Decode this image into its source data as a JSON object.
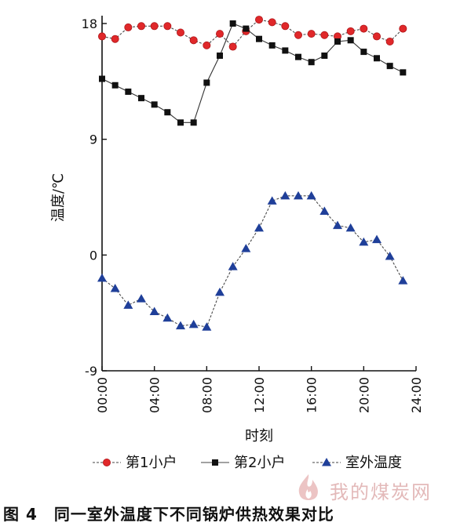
{
  "chart_data": {
    "type": "line",
    "xlabel": "时刻",
    "ylabel": "温度/℃",
    "x_ticks": [
      "00:00",
      "04:00",
      "08:00",
      "12:00",
      "16:00",
      "20:00",
      "24:00"
    ],
    "y_ticks": [
      "-9",
      "0",
      "9",
      "18"
    ],
    "xlim": [
      0,
      24
    ],
    "ylim": [
      -9,
      18
    ],
    "grid": false,
    "legend_position": "bottom",
    "x": [
      0,
      1,
      2,
      3,
      4,
      5,
      6,
      7,
      8,
      9,
      10,
      11,
      12,
      13,
      14,
      15,
      16,
      17,
      18,
      19,
      20,
      21,
      22,
      23
    ],
    "series": [
      {
        "name": "第1小户",
        "color": "#e0282a",
        "marker": "circle",
        "values": [
          17.0,
          16.8,
          17.7,
          17.8,
          17.8,
          17.8,
          17.3,
          16.7,
          16.3,
          17.2,
          16.2,
          17.4,
          18.3,
          18.1,
          17.8,
          17.1,
          17.2,
          17.1,
          17.0,
          17.4,
          17.6,
          17.0,
          16.6,
          17.6
        ]
      },
      {
        "name": "第2小户",
        "color": "#111111",
        "marker": "square",
        "values": [
          13.7,
          13.2,
          12.7,
          12.2,
          11.7,
          11.1,
          10.3,
          10.3,
          13.4,
          15.5,
          18.0,
          17.6,
          16.8,
          16.3,
          15.9,
          15.4,
          15.0,
          15.5,
          16.6,
          16.7,
          15.8,
          15.3,
          14.7,
          14.2
        ]
      },
      {
        "name": "室外温度",
        "color": "#1f3f99",
        "marker": "triangle",
        "values": [
          -1.8,
          -2.6,
          -3.9,
          -3.4,
          -4.4,
          -4.9,
          -5.5,
          -5.4,
          -5.6,
          -2.9,
          -0.9,
          0.5,
          2.1,
          4.2,
          4.6,
          4.6,
          4.6,
          3.4,
          2.3,
          2.1,
          1.0,
          1.2,
          -0.1,
          -2.0
        ]
      }
    ]
  },
  "caption": "图 4　同一室外温度下不同锅炉供热效果对比",
  "watermark": "我的煤炭网"
}
